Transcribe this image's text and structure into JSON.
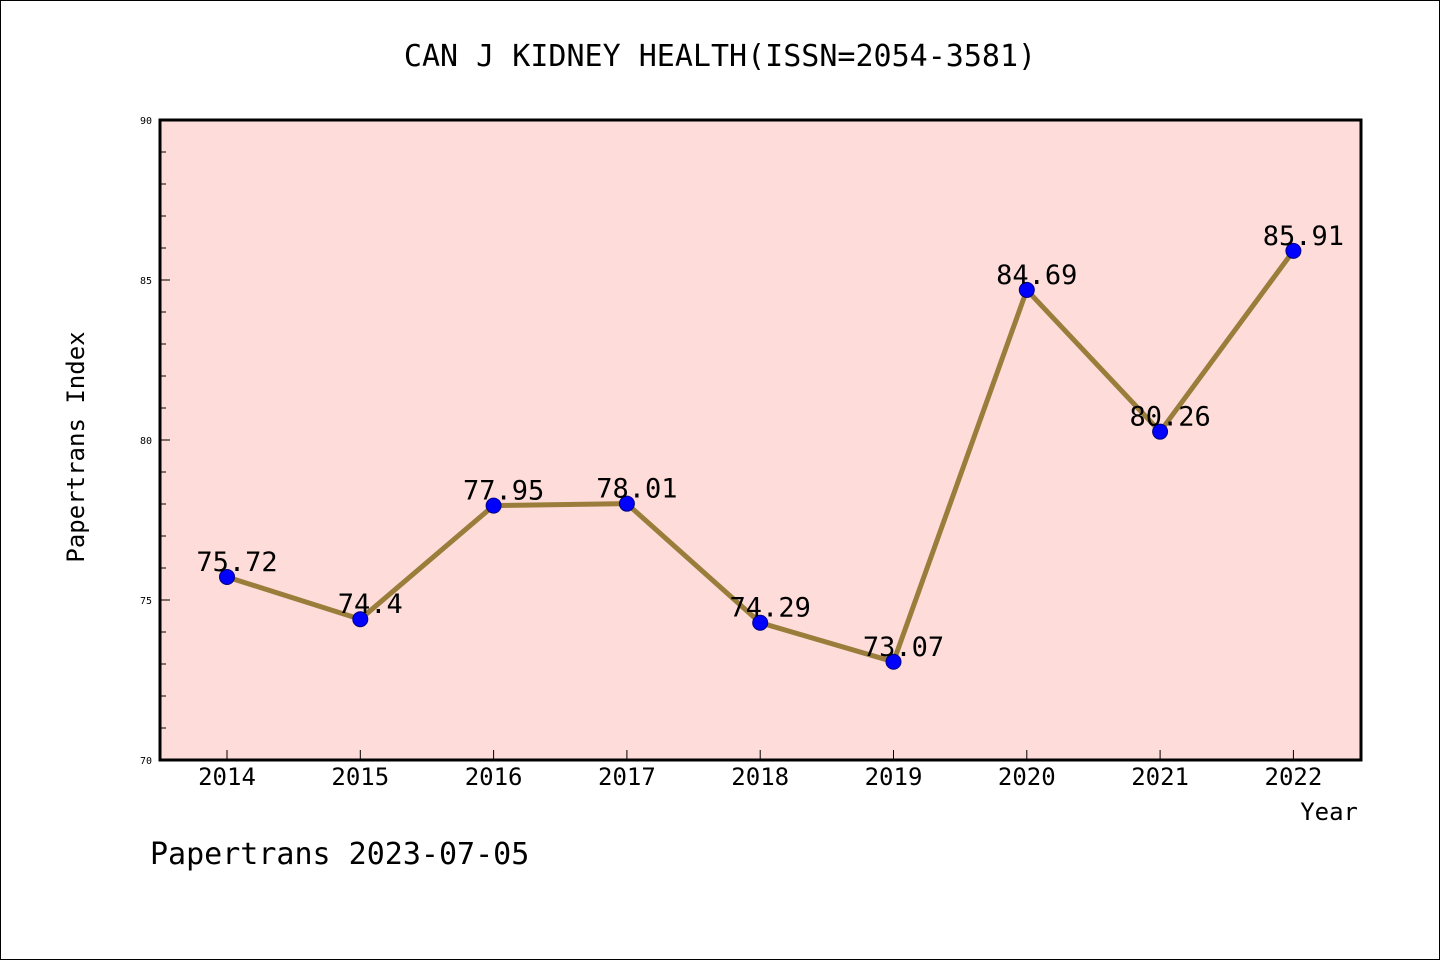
{
  "chart_data": {
    "type": "line",
    "title": "CAN J KIDNEY HEALTH(ISSN=2054-3581)",
    "xlabel": "Year",
    "ylabel": "Papertrans Index",
    "categories": [
      "2014",
      "2015",
      "2016",
      "2017",
      "2018",
      "2019",
      "2020",
      "2021",
      "2022"
    ],
    "values": [
      75.72,
      74.4,
      77.95,
      78.01,
      74.29,
      73.07,
      84.69,
      80.26,
      85.91
    ],
    "data_labels": [
      "75.72",
      "74.4",
      "77.95",
      "78.01",
      "74.29",
      "73.07",
      "84.69",
      "80.26",
      "85.91"
    ],
    "ylim": [
      70,
      90
    ],
    "yticks": [
      "70",
      "75",
      "80",
      "85",
      "90"
    ],
    "grid": false,
    "legend": "none",
    "colors": {
      "plot_background": "#fddcd9",
      "line": "#9a7d3a",
      "marker": "#0000ff",
      "marker_edge": "#000080"
    }
  },
  "footer": "Papertrans 2023-07-05"
}
